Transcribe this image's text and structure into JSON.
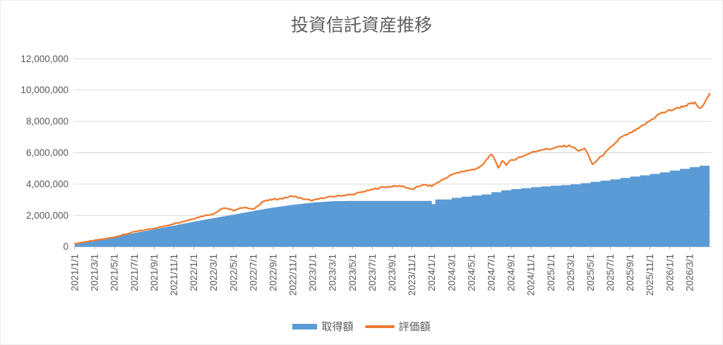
{
  "title": "投資信託資産推移",
  "colors": {
    "acquisition_area": "#5B9BD5",
    "valuation_line": "#ED7D31",
    "gridline": "#D9D9D9",
    "axis_line": "#BFBFBF",
    "tick_text": "#595959",
    "title_text": "#5F5F5F"
  },
  "legend": {
    "items": [
      {
        "id": "acquisition",
        "label": "取得額",
        "marker": "area-swatch",
        "color": "#5B9BD5"
      },
      {
        "id": "valuation",
        "label": "評価額",
        "marker": "line-swatch",
        "color": "#ED7D31"
      }
    ]
  },
  "chart_data": {
    "type": "area",
    "subtype": "area series with overlaid line series (time series of daily values, monthly purchases)",
    "title": "投資信託資産推移",
    "x_axis": {
      "unit": "date, months indexed from 2021/1/1 = 0",
      "range_months": [
        0,
        64
      ],
      "tick_interval_months": 2,
      "tick_labels": [
        "2021/1/1",
        "2021/3/1",
        "2021/5/1",
        "2021/7/1",
        "2021/9/1",
        "2021/11/1",
        "2022/1/1",
        "2022/3/1",
        "2022/5/1",
        "2022/7/1",
        "2022/9/1",
        "2022/11/1",
        "2023/1/1",
        "2023/3/1",
        "2023/5/1",
        "2023/7/1",
        "2023/9/1",
        "2023/11/1",
        "2024/1/1",
        "2024/3/1",
        "2024/5/1",
        "2024/7/1",
        "2024/9/1",
        "2024/11/1",
        "2025/1/1",
        "2025/3/1",
        "2025/5/1",
        "2025/7/1",
        "2025/9/1",
        "2025/11/1",
        "2026/1/1",
        "2026/3/1"
      ],
      "label_rotation_deg": -90
    },
    "y_axis": {
      "min": 0,
      "max": 12000000,
      "tick_interval": 2000000,
      "tick_labels": [
        "0",
        "2,000,000",
        "4,000,000",
        "6,000,000",
        "8,000,000",
        "10,000,000",
        "12,000,000"
      ]
    },
    "grid": "horizontal-only",
    "legend_position": "bottom",
    "series": [
      {
        "name": "取得額",
        "type": "area",
        "color": "#5B9BD5",
        "render_step_after_from_month": 35,
        "points": [
          [
            0,
            150000
          ],
          [
            2,
            390000
          ],
          [
            4,
            630000
          ],
          [
            6,
            870000
          ],
          [
            8,
            1110000
          ],
          [
            10,
            1350000
          ],
          [
            12,
            1600000
          ],
          [
            14,
            1830000
          ],
          [
            16,
            2050000
          ],
          [
            18,
            2280000
          ],
          [
            20,
            2500000
          ],
          [
            22,
            2680000
          ],
          [
            24,
            2820000
          ],
          [
            26,
            2900000
          ],
          [
            28,
            2930000
          ],
          [
            35,
            2930000
          ],
          [
            36,
            2720000
          ],
          [
            36.35,
            3020000
          ],
          [
            38,
            3120000
          ],
          [
            39,
            3200000
          ],
          [
            40,
            3270000
          ],
          [
            41,
            3340000
          ],
          [
            42,
            3480000
          ],
          [
            43,
            3600000
          ],
          [
            44,
            3680000
          ],
          [
            45,
            3740000
          ],
          [
            46,
            3800000
          ],
          [
            47,
            3850000
          ],
          [
            48,
            3890000
          ],
          [
            49,
            3930000
          ],
          [
            50,
            3980000
          ],
          [
            51,
            4060000
          ],
          [
            52,
            4140000
          ],
          [
            53,
            4220000
          ],
          [
            54,
            4300000
          ],
          [
            55,
            4390000
          ],
          [
            56,
            4480000
          ],
          [
            57,
            4560000
          ],
          [
            58,
            4650000
          ],
          [
            59,
            4750000
          ],
          [
            60,
            4860000
          ],
          [
            61,
            4970000
          ],
          [
            62,
            5080000
          ],
          [
            63,
            5170000
          ],
          [
            64,
            5260000
          ]
        ]
      },
      {
        "name": "評価額",
        "type": "line",
        "color": "#ED7D31",
        "jitter": {
          "base": 18000,
          "proportional": 0.0065,
          "step_months": 0.18
        },
        "points": [
          [
            0,
            200000
          ],
          [
            1,
            300000
          ],
          [
            2,
            400000
          ],
          [
            3,
            500000
          ],
          [
            4,
            620000
          ],
          [
            5,
            780000
          ],
          [
            6,
            950000
          ],
          [
            7,
            1060000
          ],
          [
            8,
            1180000
          ],
          [
            9,
            1300000
          ],
          [
            10,
            1480000
          ],
          [
            11,
            1620000
          ],
          [
            12,
            1800000
          ],
          [
            13,
            1980000
          ],
          [
            14,
            2100000
          ],
          [
            15,
            2480000
          ],
          [
            16,
            2320000
          ],
          [
            17,
            2520000
          ],
          [
            18,
            2380000
          ],
          [
            19,
            2900000
          ],
          [
            20,
            3020000
          ],
          [
            21,
            3090000
          ],
          [
            22,
            3240000
          ],
          [
            23,
            3050000
          ],
          [
            24,
            2950000
          ],
          [
            25,
            3120000
          ],
          [
            26,
            3200000
          ],
          [
            27,
            3280000
          ],
          [
            28,
            3330000
          ],
          [
            29,
            3500000
          ],
          [
            30,
            3650000
          ],
          [
            31,
            3800000
          ],
          [
            32,
            3850000
          ],
          [
            33,
            3880000
          ],
          [
            34,
            3650000
          ],
          [
            35,
            3950000
          ],
          [
            36,
            3880000
          ],
          [
            37,
            4250000
          ],
          [
            38,
            4600000
          ],
          [
            39,
            4800000
          ],
          [
            40,
            4900000
          ],
          [
            41,
            5120000
          ],
          [
            42,
            5950000
          ],
          [
            42.7,
            5050000
          ],
          [
            43.1,
            5500000
          ],
          [
            43.5,
            5250000
          ],
          [
            44,
            5500000
          ],
          [
            45,
            5750000
          ],
          [
            46,
            6000000
          ],
          [
            47,
            6200000
          ],
          [
            48,
            6250000
          ],
          [
            49,
            6400000
          ],
          [
            50,
            6450000
          ],
          [
            50.8,
            6100000
          ],
          [
            51.4,
            6300000
          ],
          [
            52.2,
            5250000
          ],
          [
            53,
            5720000
          ],
          [
            54,
            6300000
          ],
          [
            55,
            6950000
          ],
          [
            56,
            7250000
          ],
          [
            57,
            7600000
          ],
          [
            58,
            8050000
          ],
          [
            59,
            8500000
          ],
          [
            60,
            8700000
          ],
          [
            61,
            8900000
          ],
          [
            62,
            9100000
          ],
          [
            62.5,
            9170000
          ],
          [
            63.1,
            8790000
          ],
          [
            63.7,
            9400000
          ],
          [
            64,
            9770000
          ]
        ]
      }
    ]
  }
}
